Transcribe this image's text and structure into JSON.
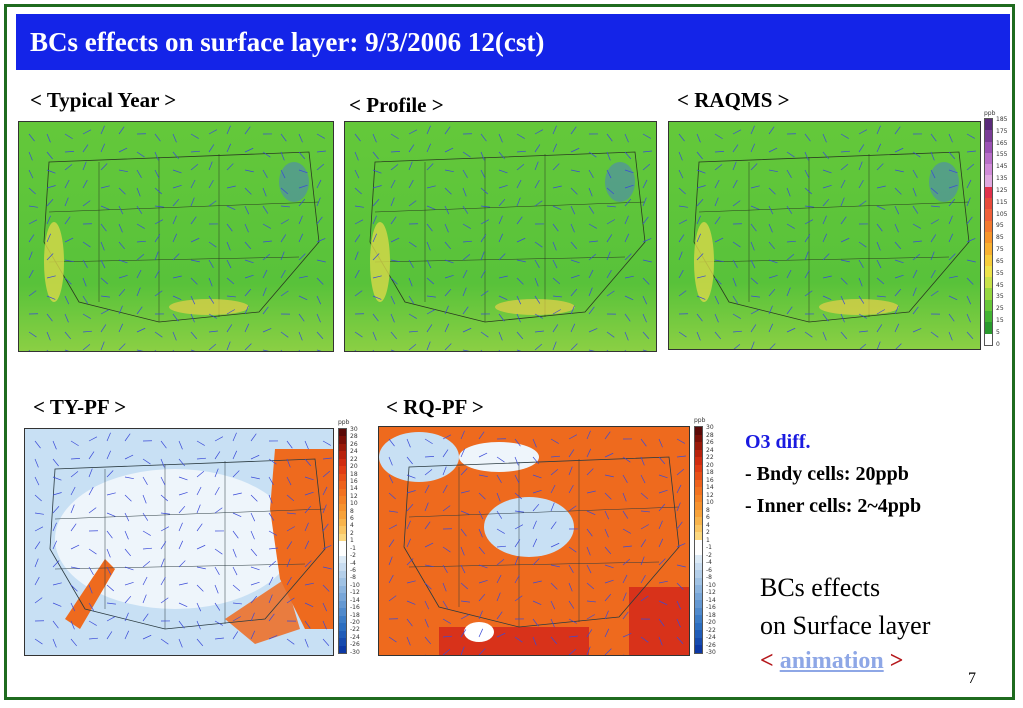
{
  "title": "BCs effects on surface layer: 9/3/2006 12(cst)",
  "panels_top": [
    {
      "label": "< Typical Year >"
    },
    {
      "label": "< Profile >"
    },
    {
      "label": "< RAQMS >"
    }
  ],
  "panels_bottom": [
    {
      "label": "< TY-PF >"
    },
    {
      "label": "< RQ-PF >"
    }
  ],
  "colorbar_top": {
    "unit": "ppb",
    "ticks": [
      "185",
      "175",
      "165",
      "155",
      "145",
      "135",
      "125",
      "115",
      "105",
      "95",
      "85",
      "75",
      "65",
      "55",
      "45",
      "35",
      "25",
      "15",
      "5",
      "0"
    ],
    "colors": [
      "#5a2a7a",
      "#7a3c96",
      "#9b52b4",
      "#b86ec8",
      "#d08ad8",
      "#e0a8e0",
      "#e0304a",
      "#e84a3a",
      "#f0603a",
      "#f47a30",
      "#f7952a",
      "#f8b030",
      "#f7cc3a",
      "#eee34a",
      "#c8e24a",
      "#96d840",
      "#68c83a",
      "#44b434",
      "#2a9a2e",
      "#ffffff"
    ]
  },
  "colorbar_diff": {
    "unit": "ppb",
    "ticks": [
      "30",
      "28",
      "26",
      "24",
      "22",
      "20",
      "18",
      "16",
      "14",
      "12",
      "10",
      "8",
      "6",
      "4",
      "2",
      "1",
      "-1",
      "-2",
      "-4",
      "-6",
      "-8",
      "-10",
      "-12",
      "-14",
      "-16",
      "-18",
      "-20",
      "-22",
      "-24",
      "-26",
      "-30"
    ],
    "colors": [
      "#5a0a08",
      "#7a1008",
      "#9a1a0a",
      "#b8220c",
      "#d02c10",
      "#e03c14",
      "#e85018",
      "#ee621c",
      "#f27220",
      "#f48226",
      "#f6922e",
      "#f7a23a",
      "#f8b44c",
      "#fac664",
      "#fcd880",
      "#ffffff",
      "#ffffff",
      "#dceaf6",
      "#c8dcf0",
      "#b4cfea",
      "#a0c2e4",
      "#8cb4de",
      "#78a6d8",
      "#6498d2",
      "#508acc",
      "#3c7cc6",
      "#2c6ec0",
      "#205cb8",
      "#164aae",
      "#0c38a4"
    ]
  },
  "notes": {
    "heading": "O3 diff.",
    "line1": "- Bndy cells: 20ppb",
    "line2": "- Inner cells:  2~4ppb"
  },
  "bcs_text": {
    "line1": "BCs effects",
    "line2": "on Surface layer"
  },
  "animation": {
    "open": "<",
    "link": "animation",
    "close": ">"
  },
  "page_number": "7",
  "colors": {
    "title_bg": "#1424e8",
    "frame": "#1f6b1f",
    "map_green": "#58c23a",
    "diff_orange": "#ee6a1e",
    "diff_blue": "#b9d7ef"
  }
}
